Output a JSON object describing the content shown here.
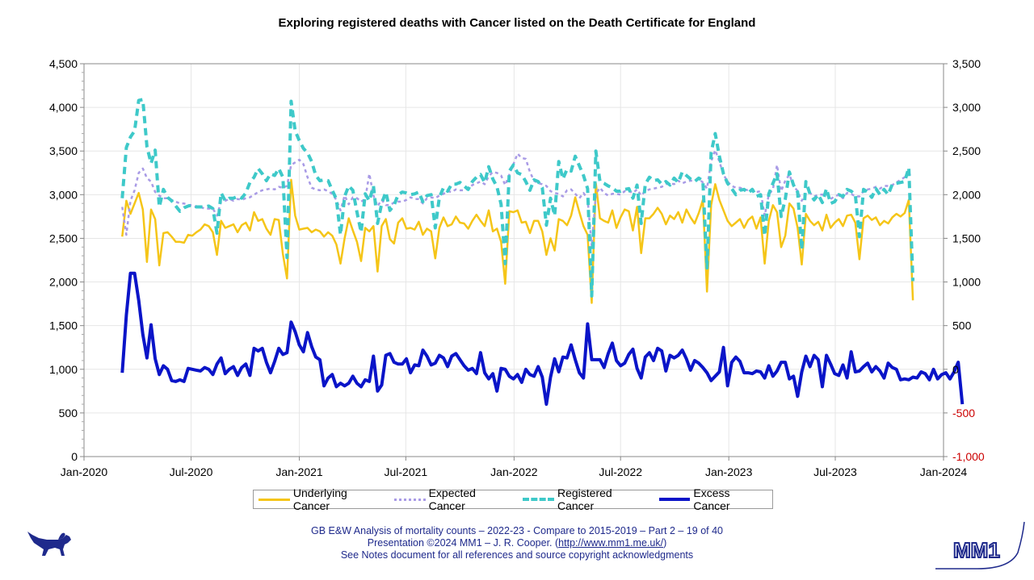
{
  "footer": {
    "line1": "GB E&W Analysis of mortality counts – 2022-23 - Compare to 2015-2019 – Part 2 – 19 of 40",
    "line2_pre": "Presentation ©2024 MM1 – J. R. Cooper. (",
    "line2_url": "http://www.mm1.me.uk/",
    "line2_post": ")",
    "line3": "See Notes document for all references and source copyright acknowledgments"
  },
  "logos": {
    "left": "dog-silhouette-icon",
    "right_text": "MM1"
  },
  "colors": {
    "underlying": "#f5c518",
    "expected": "#a99be6",
    "registered": "#3ec9c9",
    "excess": "#0a14c8",
    "negative_tick": "#cc0000",
    "grid": "#e6e6e6"
  },
  "chart_data": {
    "type": "line",
    "title": "Exploring registered deaths with Cancer listed on the Death Certificate for England",
    "xlabel": "",
    "ylabel": "",
    "xaxis": {
      "type": "date",
      "range": [
        "2020-01-01",
        "2024-01-01"
      ],
      "tick_dates": [
        "2020-01-01",
        "2020-07-01",
        "2021-01-01",
        "2021-07-01",
        "2022-01-01",
        "2022-07-01",
        "2023-01-01",
        "2023-07-01",
        "2024-01-01"
      ],
      "tick_labels": [
        "Jan-2020",
        "Jul-2020",
        "Jan-2021",
        "Jul-2021",
        "Jan-2022",
        "Jul-2022",
        "Jan-2023",
        "Jul-2023",
        "Jan-2024"
      ]
    },
    "y_left": {
      "range": [
        0,
        4500
      ],
      "step": 500,
      "tick_labels": [
        "0",
        "500",
        "1,000",
        "1,500",
        "2,000",
        "2,500",
        "3,000",
        "3,500",
        "4,000",
        "4,500"
      ]
    },
    "y_right": {
      "range": [
        -1000,
        3500
      ],
      "step": 500,
      "tick_labels": [
        "-1,000",
        "-500",
        "0",
        "500",
        "1,000",
        "1,500",
        "2,000",
        "2,500",
        "3,000",
        "3,500"
      ]
    },
    "grid": true,
    "legend_position": "bottom",
    "legend": [
      "Underlying Cancer",
      "Expected Cancer",
      "Registered Cancer",
      "Excess Cancer"
    ],
    "x_start": "2020-03-06",
    "x_step_days": 7,
    "series": [
      {
        "name": "Underlying Cancer",
        "axis": "left",
        "style": "solid",
        "values": [
          2520,
          2930,
          2780,
          2900,
          3020,
          2830,
          2230,
          2830,
          2720,
          2190,
          2560,
          2570,
          2520,
          2460,
          2460,
          2450,
          2540,
          2530,
          2570,
          2600,
          2660,
          2640,
          2570,
          2310,
          2700,
          2620,
          2640,
          2660,
          2570,
          2650,
          2680,
          2590,
          2800,
          2700,
          2720,
          2610,
          2540,
          2720,
          2710,
          2320,
          2040,
          3170,
          2760,
          2600,
          2610,
          2620,
          2570,
          2600,
          2580,
          2520,
          2570,
          2530,
          2430,
          2210,
          2500,
          2730,
          2590,
          2460,
          2240,
          2620,
          2580,
          2640,
          2120,
          2640,
          2720,
          2490,
          2440,
          2680,
          2730,
          2610,
          2620,
          2600,
          2690,
          2540,
          2610,
          2580,
          2270,
          2620,
          2740,
          2640,
          2660,
          2750,
          2680,
          2670,
          2610,
          2700,
          2770,
          2700,
          2640,
          2820,
          2580,
          2610,
          2460,
          1980,
          2810,
          2800,
          2820,
          2680,
          2690,
          2560,
          2700,
          2700,
          2580,
          2310,
          2500,
          2360,
          2720,
          2700,
          2650,
          2760,
          2970,
          2800,
          2640,
          2540,
          1760,
          3130,
          2730,
          2700,
          2680,
          2820,
          2620,
          2740,
          2830,
          2810,
          2590,
          2860,
          2330,
          2730,
          2730,
          2780,
          2850,
          2780,
          2660,
          2760,
          2720,
          2800,
          2680,
          2830,
          2740,
          2670,
          2790,
          2940,
          1890,
          2880,
          3120,
          2940,
          2820,
          2700,
          2640,
          2680,
          2720,
          2620,
          2710,
          2750,
          2610,
          2740,
          2210,
          2700,
          2880,
          2800,
          2400,
          2530,
          2900,
          2840,
          2620,
          2200,
          2780,
          2700,
          2650,
          2690,
          2590,
          2770,
          2620,
          2680,
          2720,
          2640,
          2760,
          2770,
          2680,
          2260,
          2730,
          2760,
          2710,
          2740,
          2650,
          2700,
          2670,
          2740,
          2780,
          2750,
          2790,
          2940,
          1790
        ]
      },
      {
        "name": "Expected Cancer",
        "axis": "left",
        "style": "dotted",
        "values": [
          2860,
          2540,
          2930,
          3050,
          3250,
          3300,
          3190,
          3150,
          3030,
          2990,
          2960,
          2960,
          2940,
          2920,
          2900,
          2900,
          2880,
          2880,
          2860,
          2860,
          2840,
          2840,
          2840,
          2760,
          2920,
          2930,
          2950,
          2930,
          2950,
          2940,
          2960,
          2970,
          3000,
          3030,
          3050,
          3060,
          3070,
          3060,
          3090,
          3080,
          3100,
          3340,
          3370,
          3400,
          3350,
          3200,
          3080,
          3060,
          3050,
          3060,
          3040,
          3010,
          2940,
          2820,
          2990,
          2890,
          2970,
          2960,
          2920,
          2950,
          3240,
          2990,
          2870,
          2940,
          2880,
          2880,
          2910,
          2920,
          2920,
          2940,
          2970,
          2950,
          2950,
          2900,
          2960,
          2970,
          2960,
          2990,
          3010,
          3040,
          3030,
          3060,
          3050,
          3050,
          3070,
          3110,
          3130,
          3150,
          3120,
          3210,
          3260,
          3250,
          3220,
          3110,
          3230,
          3350,
          3470,
          3420,
          3410,
          3260,
          3160,
          3130,
          3120,
          3100,
          3040,
          3020,
          3010,
          2980,
          3050,
          3060,
          3010,
          2960,
          3020,
          2950,
          2410,
          3010,
          3080,
          3020,
          2990,
          3010,
          3010,
          3000,
          3040,
          3040,
          3020,
          3060,
          2990,
          3040,
          3060,
          3070,
          3080,
          3090,
          3120,
          3130,
          3120,
          3160,
          3130,
          3150,
          3160,
          3160,
          3180,
          3140,
          3070,
          3380,
          3510,
          3380,
          3230,
          3150,
          3100,
          3080,
          3080,
          3060,
          3050,
          3060,
          3030,
          3040,
          2760,
          3000,
          3060,
          3340,
          3040,
          3160,
          3230,
          3100,
          3040,
          2930,
          3020,
          3020,
          2980,
          3000,
          3000,
          3010,
          2950,
          2980,
          3000,
          2960,
          3020,
          3010,
          2980,
          2980,
          3040,
          3060,
          3070,
          3090,
          3070,
          3100,
          3100,
          3110,
          3140,
          3170,
          3200,
          3230,
          3220
        ]
      },
      {
        "name": "Registered Cancer",
        "axis": "left",
        "style": "dashed",
        "values": [
          2960,
          3540,
          3660,
          3730,
          4080,
          4090,
          3550,
          3360,
          3510,
          2860,
          3060,
          2970,
          2930,
          2870,
          2810,
          2850,
          2870,
          2880,
          2860,
          2860,
          2860,
          2870,
          2840,
          2560,
          3020,
          2930,
          2960,
          2960,
          2980,
          2960,
          3020,
          3140,
          3200,
          3300,
          3240,
          3160,
          3240,
          3220,
          3300,
          3200,
          2280,
          4070,
          3730,
          3620,
          3530,
          3480,
          3380,
          3220,
          3160,
          3170,
          3160,
          3050,
          2950,
          2540,
          2980,
          3100,
          3050,
          2800,
          2570,
          3010,
          2930,
          3100,
          2670,
          2900,
          3030,
          2820,
          2880,
          3000,
          3030,
          3020,
          3000,
          3010,
          3030,
          2920,
          2990,
          3000,
          2620,
          2970,
          3080,
          3040,
          3120,
          3120,
          3140,
          3100,
          3060,
          3150,
          3200,
          3230,
          3140,
          3320,
          3180,
          3090,
          2890,
          2210,
          3270,
          3340,
          3250,
          3230,
          3150,
          3050,
          3170,
          3150,
          3080,
          2650,
          2960,
          2760,
          3380,
          3180,
          3290,
          3270,
          3440,
          3330,
          3220,
          3070,
          1840,
          3500,
          3150,
          3130,
          3100,
          3080,
          3040,
          3040,
          3060,
          3070,
          2960,
          3110,
          2670,
          3120,
          3200,
          3160,
          3170,
          3120,
          3150,
          3110,
          3190,
          3140,
          3260,
          3220,
          3180,
          3150,
          3190,
          3160,
          2160,
          3480,
          3700,
          3440,
          3240,
          3130,
          3070,
          3000,
          3050,
          3060,
          3020,
          3060,
          2980,
          3000,
          2530,
          3010,
          3130,
          3240,
          2750,
          2950,
          3260,
          3110,
          3030,
          2370,
          3150,
          3010,
          2940,
          3000,
          2910,
          3070,
          2900,
          2920,
          3000,
          2980,
          3060,
          3040,
          3000,
          2520,
          3060,
          3030,
          2970,
          3070,
          3000,
          3060,
          3000,
          3120,
          3130,
          3140,
          3150,
          3310,
          2010
        ]
      },
      {
        "name": "Excess Cancer",
        "axis": "right",
        "style": "solid",
        "values": [
          -40,
          620,
          1100,
          1100,
          790,
          400,
          130,
          510,
          120,
          -60,
          40,
          0,
          -130,
          -140,
          -120,
          -140,
          10,
          0,
          -10,
          -20,
          20,
          0,
          -60,
          60,
          130,
          -50,
          0,
          30,
          -70,
          20,
          60,
          -70,
          240,
          210,
          240,
          80,
          -40,
          90,
          240,
          170,
          190,
          540,
          430,
          280,
          200,
          420,
          260,
          140,
          110,
          -190,
          -100,
          -60,
          -200,
          -160,
          -190,
          -160,
          -80,
          -160,
          -200,
          -120,
          -140,
          150,
          -250,
          -180,
          160,
          180,
          80,
          60,
          60,
          120,
          -40,
          50,
          40,
          220,
          150,
          50,
          70,
          160,
          130,
          30,
          150,
          180,
          110,
          40,
          -10,
          10,
          -50,
          190,
          -40,
          -110,
          -50,
          -250,
          10,
          0,
          -80,
          -110,
          -60,
          -150,
          0,
          -60,
          -80,
          30,
          -90,
          -400,
          -90,
          120,
          -30,
          140,
          130,
          280,
          110,
          -40,
          -100,
          520,
          110,
          110,
          110,
          20,
          180,
          300,
          100,
          40,
          70,
          170,
          230,
          10,
          -100,
          140,
          190,
          100,
          240,
          210,
          -20,
          160,
          130,
          160,
          220,
          120,
          -10,
          100,
          70,
          20,
          -40,
          -130,
          -80,
          -30,
          250,
          -190,
          80,
          140,
          90,
          -40,
          -40,
          -50,
          -20,
          -30,
          -100,
          40,
          -80,
          -20,
          80,
          80,
          -110,
          -80,
          -310,
          -30,
          150,
          30,
          160,
          110,
          -200,
          160,
          60,
          -50,
          -70,
          50,
          -100,
          200,
          -30,
          -20,
          30,
          70,
          -30,
          30,
          -20,
          -100,
          70,
          20,
          0,
          -120,
          -110,
          -120,
          -90,
          -100,
          -30,
          -50,
          -120,
          0,
          -110,
          -60,
          -40,
          -110,
          -30,
          80,
          -400
        ]
      }
    ]
  }
}
